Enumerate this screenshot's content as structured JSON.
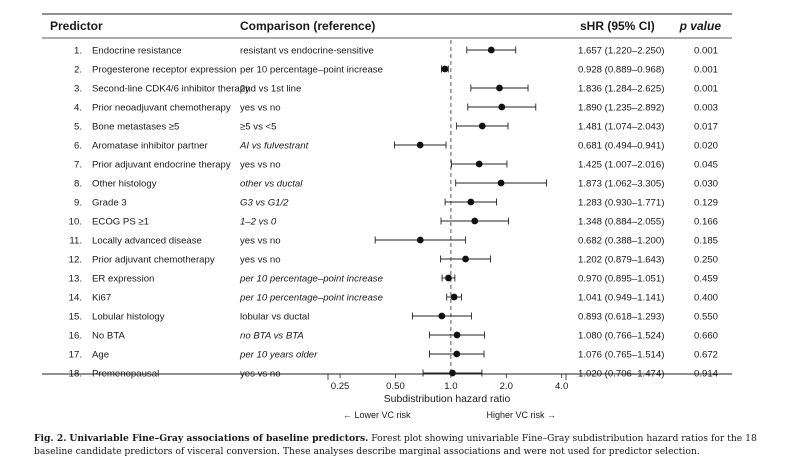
{
  "chart_data": {
    "type": "forest",
    "headers": {
      "predictor": "Predictor",
      "comparison": "Comparison (reference)",
      "estimate": "sHR (95% CI)",
      "p": "p value"
    },
    "rows": [
      {
        "idx": "1.",
        "predictor": "Endocrine resistance",
        "comparison": "resistant vs endocrine-sensitive",
        "italic": false,
        "hr": 1.657,
        "lo": 1.22,
        "hi": 2.25,
        "ci_text": "1.657 (1.220–2.250)",
        "p": "0.001"
      },
      {
        "idx": "2.",
        "predictor": "Progesterone receptor expression",
        "comparison": "per 10 percentage–point increase",
        "italic": false,
        "hr": 0.928,
        "lo": 0.889,
        "hi": 0.968,
        "ci_text": "0.928 (0.889–0.968)",
        "p": "0.001"
      },
      {
        "idx": "3.",
        "predictor": "Second-line CDK4/6 inhibitor therapy",
        "comparison": "2nd vs 1st line",
        "italic": false,
        "hr": 1.836,
        "lo": 1.284,
        "hi": 2.625,
        "ci_text": "1.836 (1.284–2.625)",
        "p": "0.001"
      },
      {
        "idx": "4.",
        "predictor": "Prior neoadjuvant chemotherapy",
        "comparison": "yes vs no",
        "italic": false,
        "hr": 1.89,
        "lo": 1.235,
        "hi": 2.892,
        "ci_text": "1.890 (1.235–2.892)",
        "p": "0.003"
      },
      {
        "idx": "5.",
        "predictor": "Bone metastases ≥5",
        "comparison": "≥5 vs <5",
        "italic": false,
        "hr": 1.481,
        "lo": 1.074,
        "hi": 2.043,
        "ci_text": "1.481 (1.074–2.043)",
        "p": "0.017"
      },
      {
        "idx": "6.",
        "predictor": "Aromatase inhibitor partner",
        "comparison": "AI vs fulvestrant",
        "italic": true,
        "hr": 0.681,
        "lo": 0.494,
        "hi": 0.941,
        "ci_text": "0.681 (0.494–0.941)",
        "p": "0.020"
      },
      {
        "idx": "7.",
        "predictor": "Prior adjuvant endocrine therapy",
        "comparison": "yes vs no",
        "italic": false,
        "hr": 1.425,
        "lo": 1.007,
        "hi": 2.016,
        "ci_text": "1.425 (1.007–2.016)",
        "p": "0.045"
      },
      {
        "idx": "8.",
        "predictor": "Other histology",
        "comparison": "other vs ductal",
        "italic": true,
        "hr": 1.873,
        "lo": 1.062,
        "hi": 3.305,
        "ci_text": "1.873 (1.062–3.305)",
        "p": "0.030"
      },
      {
        "idx": "9.",
        "predictor": "Grade 3",
        "comparison": "G3 vs G1/2",
        "italic": true,
        "hr": 1.283,
        "lo": 0.93,
        "hi": 1.771,
        "ci_text": "1.283 (0.930–1.771)",
        "p": "0.129"
      },
      {
        "idx": "10.",
        "predictor": "ECOG PS ≥1",
        "comparison": "1–2 vs 0",
        "italic": true,
        "hr": 1.348,
        "lo": 0.884,
        "hi": 2.055,
        "ci_text": "1.348 (0.884–2.055)",
        "p": "0.166"
      },
      {
        "idx": "11.",
        "predictor": "Locally advanced disease",
        "comparison": "yes vs no",
        "italic": false,
        "hr": 0.682,
        "lo": 0.388,
        "hi": 1.2,
        "ci_text": "0.682 (0.388–1.200)",
        "p": "0.185"
      },
      {
        "idx": "12.",
        "predictor": "Prior adjuvant chemotherapy",
        "comparison": "yes vs no",
        "italic": false,
        "hr": 1.202,
        "lo": 0.879,
        "hi": 1.643,
        "ci_text": "1.202 (0.879–1.643)",
        "p": "0.250"
      },
      {
        "idx": "13.",
        "predictor": "ER expression",
        "comparison": "per 10 percentage–point increase",
        "italic": true,
        "hr": 0.97,
        "lo": 0.895,
        "hi": 1.051,
        "ci_text": "0.970 (0.895–1.051)",
        "p": "0.459"
      },
      {
        "idx": "14.",
        "predictor": "Ki67",
        "comparison": "per 10 percentage–point increase",
        "italic": true,
        "hr": 1.041,
        "lo": 0.949,
        "hi": 1.141,
        "ci_text": "1.041 (0.949–1.141)",
        "p": "0.400"
      },
      {
        "idx": "15.",
        "predictor": "Lobular histology",
        "comparison": "lobular vs ductal",
        "italic": false,
        "hr": 0.893,
        "lo": 0.618,
        "hi": 1.293,
        "ci_text": "0.893 (0.618–1.293)",
        "p": "0.550"
      },
      {
        "idx": "16.",
        "predictor": "No BTA",
        "comparison": "no BTA vs BTA",
        "italic": true,
        "hr": 1.08,
        "lo": 0.766,
        "hi": 1.524,
        "ci_text": "1.080 (0.766–1.524)",
        "p": "0.660"
      },
      {
        "idx": "17.",
        "predictor": "Age",
        "comparison": "per 10 years older",
        "italic": true,
        "hr": 1.076,
        "lo": 0.765,
        "hi": 1.514,
        "ci_text": "1.076 (0.765–1.514)",
        "p": "0.672"
      },
      {
        "idx": "18.",
        "predictor": "Premenopausal",
        "comparison": "yes vs no",
        "italic": false,
        "hr": 1.02,
        "lo": 0.706,
        "hi": 1.474,
        "ci_text": "1.020 (0.706–1.474)",
        "p": "0.914"
      }
    ],
    "x_axis": {
      "scale": "log",
      "ticks": [
        0.25,
        0.5,
        1.0,
        2.0,
        4.0
      ],
      "tick_labels": [
        "0.25",
        "0.50",
        "1.0",
        "2.0",
        "4.0"
      ],
      "label": "Subdistribution hazard ratio",
      "reference": 1.0,
      "left_note": "← Lower VC risk",
      "right_note": "Higher VC risk →"
    }
  },
  "caption": {
    "label": "Fig. 2.",
    "title": "Univariable Fine–Gray associations of baseline predictors.",
    "body": "Forest plot showing univariable Fine–Gray subdistribution hazard ratios for the 18 baseline candidate predictors of visceral conversion. These analyses describe marginal associations and were not used for predictor selection."
  }
}
